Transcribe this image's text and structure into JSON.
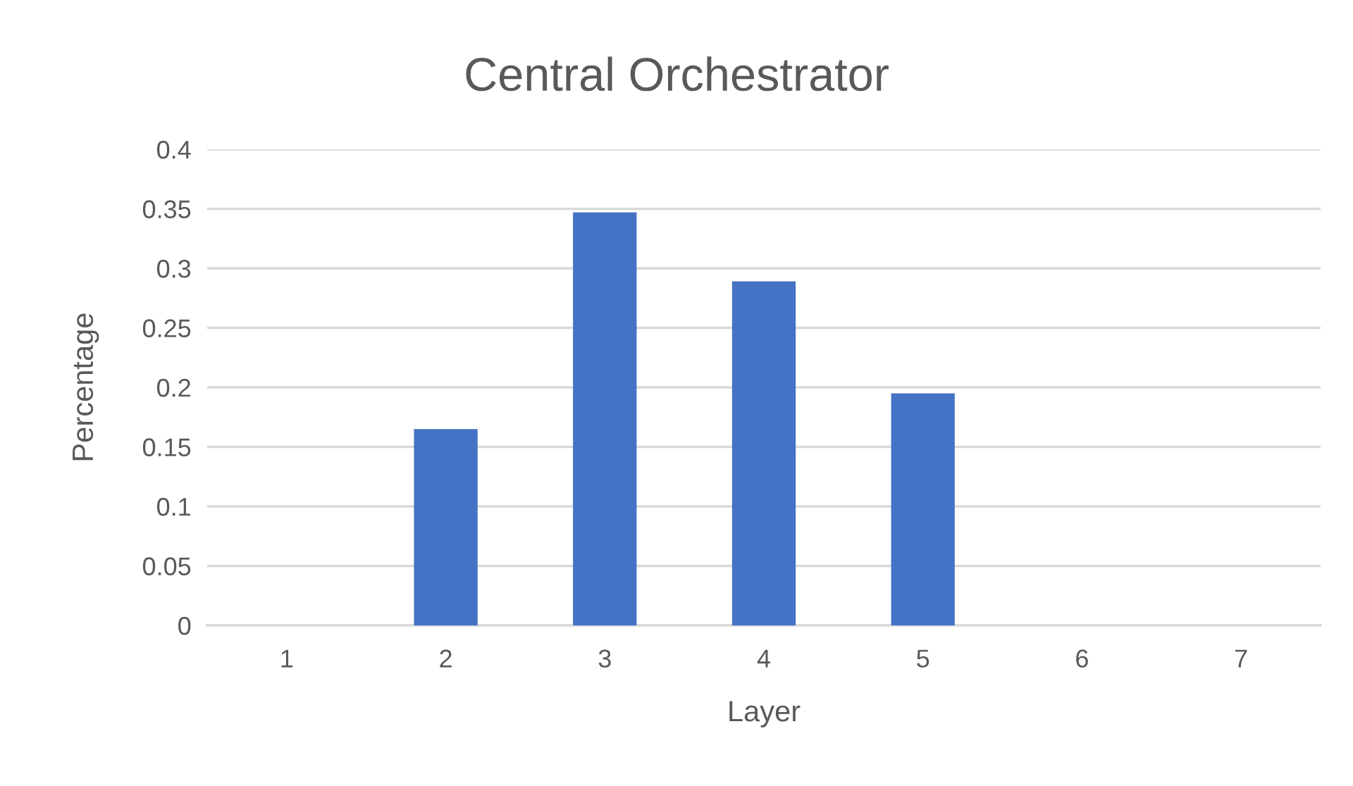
{
  "chart_data": {
    "type": "bar",
    "title": "Central Orchestrator",
    "xlabel": "Layer",
    "ylabel": "Percentage",
    "categories": [
      "1",
      "2",
      "3",
      "4",
      "5",
      "6",
      "7"
    ],
    "values": [
      0,
      0.165,
      0.347,
      0.289,
      0.195,
      0,
      0
    ],
    "color": "#4472c4",
    "ylim": [
      0,
      0.4
    ],
    "yticks": [
      0,
      0.05,
      0.1,
      0.15,
      0.2,
      0.25,
      0.3,
      0.35,
      0.4
    ],
    "grid": "y",
    "legend": false
  }
}
